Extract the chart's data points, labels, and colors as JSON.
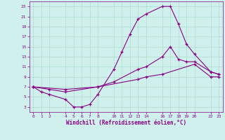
{
  "xlabel": "Windchill (Refroidissement éolien,°C)",
  "bg_color": "#cff0ec",
  "grid_color": "#aaddcc",
  "line_color": "#880088",
  "x_ticks": [
    0,
    1,
    2,
    4,
    5,
    6,
    7,
    8,
    10,
    11,
    12,
    13,
    14,
    16,
    17,
    18,
    19,
    20,
    22,
    23
  ],
  "ylim": [
    2,
    24
  ],
  "xlim": [
    -0.5,
    23.5
  ],
  "yticks": [
    3,
    5,
    7,
    9,
    11,
    13,
    15,
    17,
    19,
    21,
    23
  ],
  "series": [
    {
      "x": [
        0,
        1,
        2,
        4,
        5,
        6,
        7,
        8,
        10,
        11,
        12,
        13,
        14,
        16,
        17,
        18,
        19,
        20,
        22,
        23
      ],
      "y": [
        7,
        6,
        5.5,
        4.5,
        3,
        3,
        3.5,
        5.5,
        10.5,
        14,
        17.5,
        20.5,
        21.5,
        23,
        23,
        19.5,
        15.5,
        13.5,
        10,
        9.5
      ]
    },
    {
      "x": [
        0,
        2,
        4,
        8,
        10,
        13,
        14,
        16,
        17,
        18,
        19,
        20,
        22,
        23
      ],
      "y": [
        7,
        6.5,
        6,
        7,
        8,
        10.5,
        11,
        13,
        15,
        12.5,
        12,
        12,
        10,
        9.5
      ]
    },
    {
      "x": [
        0,
        4,
        8,
        13,
        14,
        16,
        20,
        22,
        23
      ],
      "y": [
        7,
        6.5,
        7,
        8.5,
        9,
        9.5,
        11.5,
        9,
        9
      ]
    }
  ]
}
